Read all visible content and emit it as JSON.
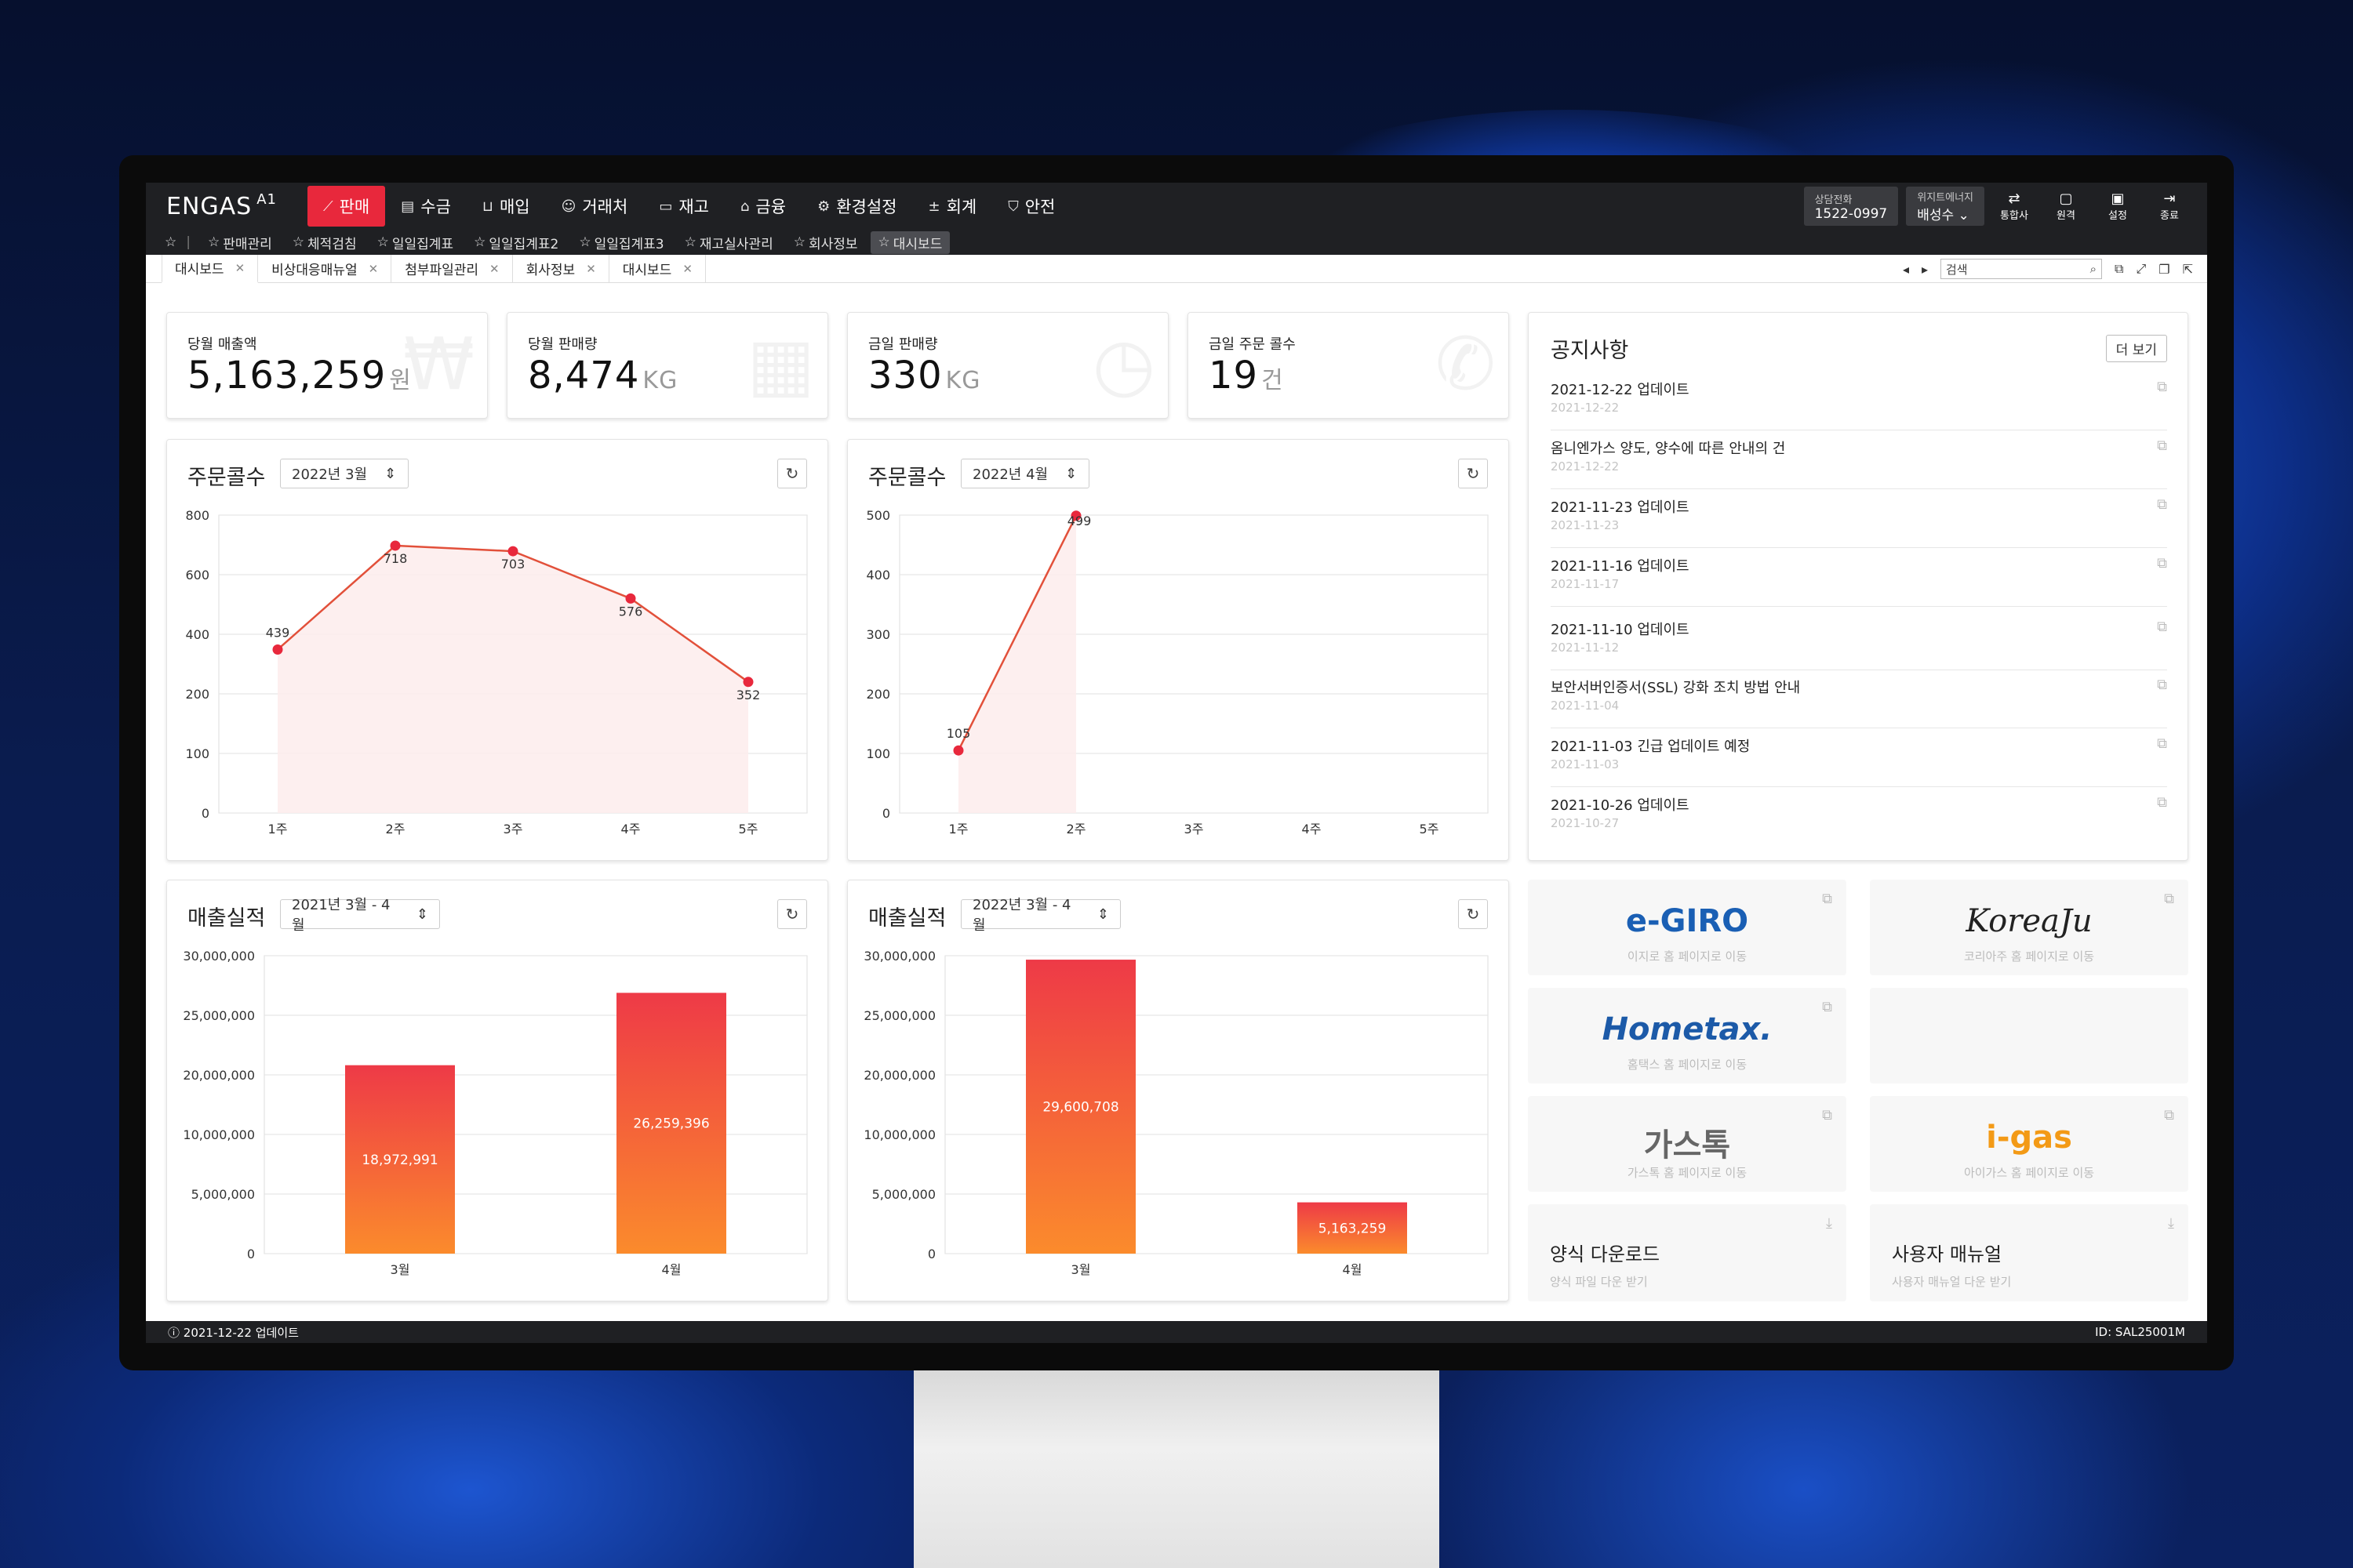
{
  "app": {
    "logo": "ENGAS",
    "logo_sup": "A1"
  },
  "menu": [
    {
      "label": "판매",
      "icon": "chart-line-icon"
    },
    {
      "label": "수금",
      "icon": "card-icon"
    },
    {
      "label": "매입",
      "icon": "cart-icon"
    },
    {
      "label": "거래처",
      "icon": "people-icon"
    },
    {
      "label": "재고",
      "icon": "box-icon"
    },
    {
      "label": "금융",
      "icon": "bank-icon"
    },
    {
      "label": "환경설정",
      "icon": "gear-icon"
    },
    {
      "label": "회계",
      "icon": "calculator-icon"
    },
    {
      "label": "안전",
      "icon": "shield-icon"
    }
  ],
  "topright": {
    "phone_label": "상담전화",
    "phone": "1522-0997",
    "company_label": "위지트에너지",
    "user": "배성수",
    "buttons": [
      "통합사",
      "원격",
      "설정",
      "종료"
    ]
  },
  "favorites": [
    "판매관리",
    "체적검침",
    "일일집계표",
    "일일집계표2",
    "일일집계표3",
    "재고실사관리",
    "회사정보",
    "대시보드"
  ],
  "tabs": [
    "대시보드",
    "비상대응매뉴얼",
    "첨부파일관리",
    "회사정보",
    "대시보드"
  ],
  "search": {
    "placeholder": "검색"
  },
  "kpis": [
    {
      "label": "당월 매출액",
      "value": "5,163,259",
      "unit": "원",
      "icon": "won-icon"
    },
    {
      "label": "당월 판매량",
      "value": "8,474",
      "unit": "KG",
      "icon": "calendar-icon"
    },
    {
      "label": "금일 판매량",
      "value": "330",
      "unit": "KG",
      "icon": "clock-calendar-icon"
    },
    {
      "label": "금일 주문 콜수",
      "value": "19",
      "unit": "건",
      "icon": "phone-icon"
    }
  ],
  "line_cards": [
    {
      "title": "주문콜수",
      "period": "2022년 3월"
    },
    {
      "title": "주문콜수",
      "period": "2022년 4월"
    }
  ],
  "bar_cards": [
    {
      "title": "매출실적",
      "period": "2021년 3월 - 4월"
    },
    {
      "title": "매출실적",
      "period": "2022년 3월 - 4월"
    }
  ],
  "chart_data": [
    {
      "type": "line",
      "categories": [
        "1주",
        "2주",
        "3주",
        "4주",
        "5주"
      ],
      "values": [
        439,
        718,
        703,
        576,
        352
      ],
      "ylim": [
        0,
        800
      ],
      "yticks": [
        "0",
        "100",
        "200",
        "400",
        "600",
        "800"
      ]
    },
    {
      "type": "line",
      "categories": [
        "1주",
        "2주",
        "3주",
        "4주",
        "5주"
      ],
      "values": [
        105,
        499,
        null,
        null,
        null
      ],
      "ylim": [
        0,
        500
      ],
      "yticks": [
        "0",
        "100",
        "200",
        "300",
        "400",
        "500"
      ]
    },
    {
      "type": "bar",
      "categories": [
        "3월",
        "4월"
      ],
      "values": [
        18972991,
        26259396
      ],
      "labels": [
        "18,972,991",
        "26,259,396"
      ],
      "ylim": [
        0,
        30000000
      ],
      "yticks": [
        "0",
        "5,000,000",
        "10,000,000",
        "20,000,000",
        "25,000,000",
        "30,000,000"
      ]
    },
    {
      "type": "bar",
      "categories": [
        "3월",
        "4월"
      ],
      "values": [
        29600708,
        5163259
      ],
      "labels": [
        "29,600,708",
        "5,163,259"
      ],
      "ylim": [
        0,
        30000000
      ],
      "yticks": [
        "0",
        "5,000,000",
        "10,000,000",
        "20,000,000",
        "25,000,000",
        "30,000,000"
      ]
    }
  ],
  "notice": {
    "title": "공지사항",
    "more": "더 보기",
    "items": [
      {
        "t": "2021-12-22 업데이트",
        "d": "2021-12-22"
      },
      {
        "t": "옴니엔가스 양도, 양수에 따른 안내의 건",
        "d": "2021-12-22"
      },
      {
        "t": "2021-11-23 업데이트",
        "d": "2021-11-23"
      },
      {
        "t": "2021-11-16 업데이트",
        "d": "2021-11-17"
      },
      {
        "t": "2021-11-10 업데이트",
        "d": "2021-11-12"
      },
      {
        "t": "보안서버인증서(SSL) 강화 조치 방법 안내",
        "d": "2021-11-04"
      },
      {
        "t": "2021-11-03 긴급 업데이트 예정",
        "d": "2021-11-03"
      },
      {
        "t": "2021-10-26 업데이트",
        "d": "2021-10-27"
      }
    ]
  },
  "links": [
    {
      "logo": "e-GIRO",
      "caption": "이지로 홈 페이지로 이동",
      "color": "#1a5fb4"
    },
    {
      "logo": "KoreaJu",
      "caption": "코리아주 홈 페이지로 이동",
      "color": "#222"
    },
    {
      "logo": "Hometax.",
      "caption": "홈택스 홈 페이지로 이동",
      "color": "#1c5aa8"
    },
    {
      "logo": "",
      "caption": ""
    },
    {
      "logo": "가스톡",
      "caption": "가스톡 홈 페이지로 이동",
      "color": "#555"
    },
    {
      "logo": "i-gas",
      "caption": "아이가스 홈 페이지로 이동",
      "color": "#f39a16"
    }
  ],
  "downloads": [
    {
      "title": "양식 다운로드",
      "caption": "양식 파일 다운 받기"
    },
    {
      "title": "사용자 매뉴얼",
      "caption": "사용자 매뉴얼 다운 받기"
    }
  ],
  "status": {
    "update": "2021-12-22 업데이트",
    "id": "ID: SAL25001M"
  },
  "colors": {
    "accent": "#e8283c",
    "line": "#e2503a",
    "bar_top": "#ee3a47",
    "bar_bottom": "#fb8b2c"
  }
}
